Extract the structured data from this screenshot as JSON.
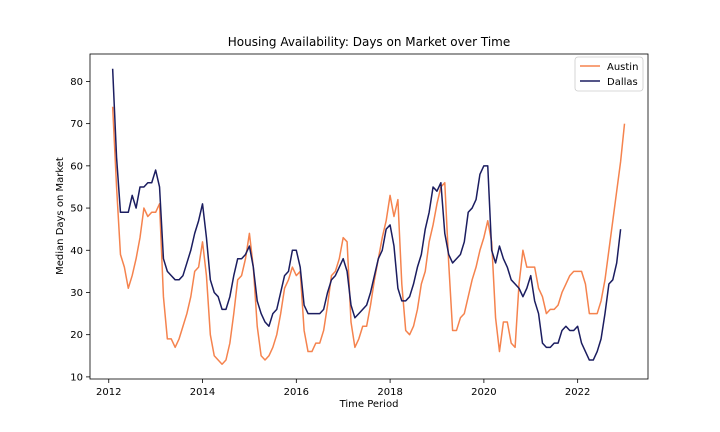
{
  "chart_data": {
    "type": "line",
    "title": "Housing Availability: Days on Market over Time",
    "xlabel": "Time Period",
    "ylabel": "Median Days on Market",
    "xlim": [
      2011.6,
      2023.5
    ],
    "ylim": [
      9.5,
      86.5
    ],
    "x_ticks": [
      2012,
      2014,
      2016,
      2018,
      2020,
      2022
    ],
    "y_ticks": [
      10,
      20,
      30,
      40,
      50,
      60,
      70,
      80
    ],
    "grid": false,
    "legend_position": "top-right",
    "x_start": 2012.083,
    "x_step": 0.08333,
    "series": [
      {
        "name": "Austin",
        "color": "#F5834E",
        "values": [
          74,
          55,
          39,
          36,
          31,
          34,
          38,
          43,
          50,
          48,
          49,
          49,
          51,
          29,
          19,
          19,
          17,
          19,
          22,
          25,
          29,
          35,
          36,
          42,
          34,
          20,
          15,
          14,
          13,
          14,
          18,
          25,
          33,
          34,
          38,
          44,
          36,
          22,
          15,
          14,
          15,
          17,
          20,
          25,
          31,
          33,
          36,
          34,
          35,
          21,
          16,
          16,
          18,
          18,
          21,
          27,
          34,
          35,
          38,
          43,
          42,
          23,
          17,
          19,
          22,
          22,
          27,
          33,
          38,
          43,
          47,
          53,
          48,
          52,
          32,
          21,
          20,
          22,
          26,
          32,
          35,
          42,
          46,
          51,
          55,
          56,
          37,
          21,
          21,
          24,
          25,
          29,
          33,
          36,
          40,
          43,
          47,
          42,
          24,
          16,
          23,
          23,
          18,
          17,
          32,
          40,
          36,
          36,
          36,
          31,
          29,
          25,
          26,
          26,
          27,
          30,
          32,
          34,
          35,
          35,
          35,
          32,
          25,
          25,
          25,
          28,
          33,
          40,
          47,
          54,
          61,
          70
        ]
      },
      {
        "name": "Dallas",
        "color": "#1B1D60",
        "values": [
          83,
          62,
          49,
          49,
          49,
          53,
          50,
          55,
          55,
          56,
          56,
          59,
          55,
          38,
          35,
          34,
          33,
          33,
          34,
          37,
          40,
          44,
          47,
          51,
          43,
          33,
          30,
          29,
          26,
          26,
          29,
          34,
          38,
          38,
          39,
          41,
          36,
          28,
          25,
          23,
          22,
          25,
          26,
          30,
          34,
          35,
          40,
          40,
          36,
          27,
          25,
          25,
          25,
          25,
          26,
          30,
          33,
          34,
          36,
          38,
          35,
          27,
          24,
          25,
          26,
          27,
          30,
          34,
          38,
          40,
          45,
          46,
          41,
          31,
          28,
          28,
          29,
          32,
          36,
          39,
          45,
          49,
          55,
          54,
          56,
          44,
          39,
          37,
          38,
          39,
          42,
          49,
          50,
          52,
          58,
          60,
          60,
          40,
          37,
          41,
          38,
          36,
          33,
          32,
          31,
          29,
          31,
          34,
          28,
          25,
          18,
          17,
          17,
          18,
          18,
          21,
          22,
          21,
          21,
          22,
          18,
          16,
          14,
          14,
          16,
          19,
          25,
          32,
          33,
          37,
          45
        ]
      }
    ]
  }
}
